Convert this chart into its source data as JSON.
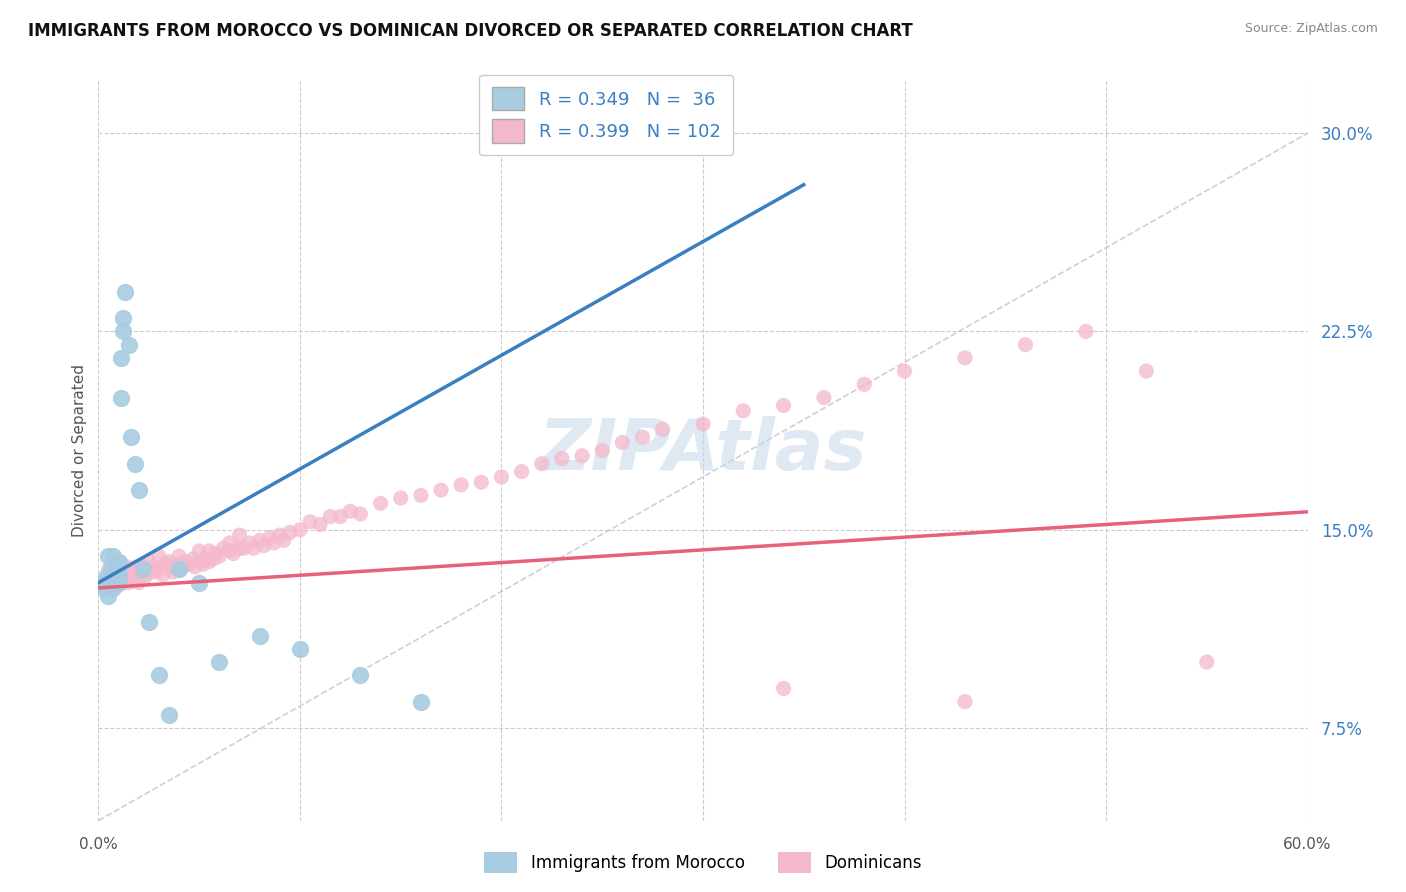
{
  "title": "IMMIGRANTS FROM MOROCCO VS DOMINICAN DIVORCED OR SEPARATED CORRELATION CHART",
  "source": "Source: ZipAtlas.com",
  "ylabel": "Divorced or Separated",
  "legend_label1": "Immigrants from Morocco",
  "legend_label2": "Dominicans",
  "R1": "0.349",
  "N1": "36",
  "R2": "0.399",
  "N2": "102",
  "xlim": [
    0.0,
    0.6
  ],
  "ylim": [
    0.04,
    0.32
  ],
  "yticks_right": [
    0.075,
    0.15,
    0.225,
    0.3
  ],
  "yticklabels_right": [
    "7.5%",
    "15.0%",
    "22.5%",
    "30.0%"
  ],
  "color_morocco": "#a8cce0",
  "color_dominican": "#f4b8cb",
  "color_line_morocco": "#3a7fc1",
  "color_line_dominican": "#e8607a",
  "color_diag": "#bbbbbb",
  "watermark": "ZIPAtlas",
  "background_color": "#ffffff",
  "grid_color": "#cccccc",
  "morocco_x": [
    0.002,
    0.003,
    0.004,
    0.005,
    0.005,
    0.006,
    0.006,
    0.007,
    0.007,
    0.008,
    0.008,
    0.009,
    0.009,
    0.01,
    0.01,
    0.01,
    0.011,
    0.011,
    0.012,
    0.012,
    0.013,
    0.015,
    0.016,
    0.018,
    0.02,
    0.022,
    0.025,
    0.03,
    0.035,
    0.04,
    0.05,
    0.06,
    0.08,
    0.1,
    0.13,
    0.16
  ],
  "morocco_y": [
    0.13,
    0.128,
    0.132,
    0.125,
    0.14,
    0.135,
    0.133,
    0.14,
    0.128,
    0.135,
    0.129,
    0.132,
    0.137,
    0.13,
    0.133,
    0.138,
    0.2,
    0.215,
    0.23,
    0.225,
    0.24,
    0.22,
    0.185,
    0.175,
    0.165,
    0.135,
    0.115,
    0.095,
    0.08,
    0.135,
    0.13,
    0.1,
    0.11,
    0.105,
    0.095,
    0.085
  ],
  "dominican_x": [
    0.003,
    0.005,
    0.006,
    0.007,
    0.008,
    0.009,
    0.01,
    0.01,
    0.011,
    0.012,
    0.013,
    0.014,
    0.015,
    0.015,
    0.016,
    0.017,
    0.018,
    0.019,
    0.02,
    0.02,
    0.021,
    0.022,
    0.023,
    0.025,
    0.025,
    0.027,
    0.028,
    0.03,
    0.03,
    0.032,
    0.033,
    0.035,
    0.035,
    0.037,
    0.038,
    0.04,
    0.04,
    0.042,
    0.043,
    0.045,
    0.047,
    0.048,
    0.05,
    0.05,
    0.052,
    0.053,
    0.055,
    0.055,
    0.057,
    0.058,
    0.06,
    0.062,
    0.065,
    0.065,
    0.067,
    0.07,
    0.07,
    0.072,
    0.075,
    0.077,
    0.08,
    0.082,
    0.085,
    0.087,
    0.09,
    0.092,
    0.095,
    0.1,
    0.105,
    0.11,
    0.115,
    0.12,
    0.125,
    0.13,
    0.14,
    0.15,
    0.16,
    0.17,
    0.18,
    0.19,
    0.2,
    0.21,
    0.22,
    0.23,
    0.24,
    0.25,
    0.26,
    0.27,
    0.28,
    0.3,
    0.32,
    0.34,
    0.36,
    0.38,
    0.4,
    0.43,
    0.46,
    0.49,
    0.52,
    0.55,
    0.34,
    0.43
  ],
  "dominican_y": [
    0.13,
    0.135,
    0.128,
    0.133,
    0.13,
    0.135,
    0.132,
    0.138,
    0.13,
    0.134,
    0.132,
    0.136,
    0.13,
    0.134,
    0.133,
    0.135,
    0.132,
    0.136,
    0.13,
    0.135,
    0.133,
    0.136,
    0.132,
    0.134,
    0.138,
    0.136,
    0.134,
    0.135,
    0.14,
    0.133,
    0.137,
    0.136,
    0.138,
    0.134,
    0.137,
    0.135,
    0.14,
    0.136,
    0.138,
    0.137,
    0.139,
    0.136,
    0.138,
    0.142,
    0.137,
    0.139,
    0.138,
    0.142,
    0.139,
    0.141,
    0.14,
    0.143,
    0.142,
    0.145,
    0.141,
    0.143,
    0.148,
    0.143,
    0.145,
    0.143,
    0.146,
    0.144,
    0.147,
    0.145,
    0.148,
    0.146,
    0.149,
    0.15,
    0.153,
    0.152,
    0.155,
    0.155,
    0.157,
    0.156,
    0.16,
    0.162,
    0.163,
    0.165,
    0.167,
    0.168,
    0.17,
    0.172,
    0.175,
    0.177,
    0.178,
    0.18,
    0.183,
    0.185,
    0.188,
    0.19,
    0.195,
    0.197,
    0.2,
    0.205,
    0.21,
    0.215,
    0.22,
    0.225,
    0.21,
    0.1,
    0.09,
    0.085
  ]
}
